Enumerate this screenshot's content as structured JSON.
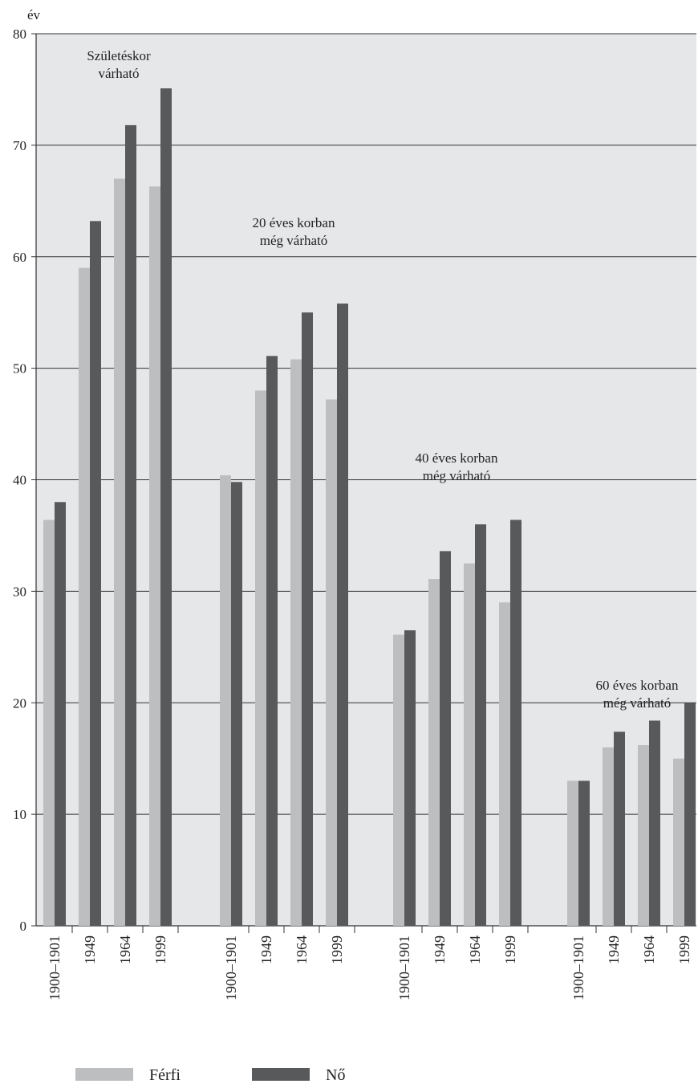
{
  "chart_data": {
    "type": "bar",
    "ylabel": "év",
    "ylim": [
      0,
      80
    ],
    "yticks": [
      0,
      10,
      20,
      30,
      40,
      50,
      60,
      70,
      80
    ],
    "grid": true,
    "legend_position": "bottom-left",
    "colors": {
      "Férfi": "#bdbec0",
      "Nő": "#58595b",
      "background": "#e6e7e9"
    },
    "groups": [
      {
        "annotation": [
          "Születéskor",
          "várható"
        ],
        "categories": [
          "1900–1901",
          "1949",
          "1964",
          "1999"
        ]
      },
      {
        "annotation": [
          "20 éves korban",
          "még várható"
        ],
        "categories": [
          "1900–1901",
          "1949",
          "1964",
          "1999"
        ]
      },
      {
        "annotation": [
          "40 éves korban",
          "még várható"
        ],
        "categories": [
          "1900–1901",
          "1949",
          "1964",
          "1999"
        ]
      },
      {
        "annotation": [
          "60 éves korban",
          "még várható"
        ],
        "categories": [
          "1900–1901",
          "1949",
          "1964",
          "1999"
        ]
      }
    ],
    "series": [
      {
        "name": "Férfi",
        "values": [
          [
            36.4,
            59.0,
            67.0,
            66.3
          ],
          [
            40.4,
            48.0,
            50.8,
            47.2
          ],
          [
            26.1,
            31.1,
            32.5,
            29.0
          ],
          [
            13.0,
            16.0,
            16.2,
            15.0
          ]
        ]
      },
      {
        "name": "Nő",
        "values": [
          [
            38.0,
            63.2,
            71.8,
            75.1
          ],
          [
            39.8,
            51.1,
            55.0,
            55.8
          ],
          [
            26.5,
            33.6,
            36.0,
            36.4
          ],
          [
            13.0,
            17.4,
            18.4,
            20.0
          ]
        ]
      }
    ]
  }
}
